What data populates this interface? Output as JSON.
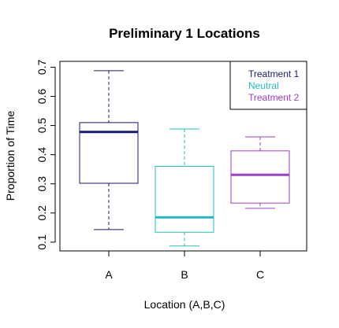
{
  "chart_data": {
    "type": "boxplot",
    "title": "Preliminary 1 Locations",
    "xlabel": "Location (A,B,C)",
    "ylabel": "Proportion of Time",
    "ylim": [
      0.07,
      0.72
    ],
    "yticks": [
      0.1,
      0.2,
      0.3,
      0.4,
      0.5,
      0.6,
      0.7
    ],
    "categories": [
      "A",
      "B",
      "C"
    ],
    "boxes": [
      {
        "category": "A",
        "color": "#1a1a6e",
        "min": 0.143,
        "q1": 0.302,
        "median": 0.478,
        "q3": 0.51,
        "max": 0.688
      },
      {
        "category": "B",
        "color": "#26bcc4",
        "min": 0.087,
        "q1": 0.134,
        "median": 0.185,
        "q3": 0.36,
        "max": 0.488
      },
      {
        "category": "C",
        "color": "#9b3fc6",
        "min": 0.216,
        "q1": 0.234,
        "median": 0.331,
        "q3": 0.413,
        "max": 0.461
      }
    ],
    "legend": {
      "position": "top-right",
      "entries": [
        {
          "label": "Treatment 1",
          "color": "#1a1a6e"
        },
        {
          "label": "Neutral",
          "color": "#26bcc4"
        },
        {
          "label": "Treatment 2",
          "color": "#9b3fc6"
        }
      ]
    }
  }
}
